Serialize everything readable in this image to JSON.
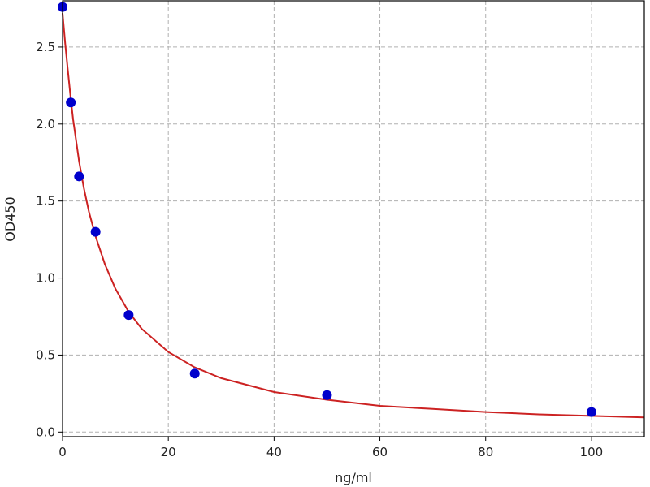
{
  "chart_data": {
    "type": "scatter",
    "title": "",
    "xlabel": "ng/ml",
    "ylabel": "OD450",
    "xlim": [
      0,
      110
    ],
    "ylim": [
      -0.03,
      2.8
    ],
    "grid": true,
    "xticks": [
      0,
      20,
      40,
      60,
      80,
      100
    ],
    "yticks": [
      0.0,
      0.5,
      1.0,
      1.5,
      2.0,
      2.5
    ],
    "xtick_labels": [
      "0",
      "20",
      "40",
      "60",
      "80",
      "100"
    ],
    "ytick_labels": [
      "0.0",
      "0.5",
      "1.0",
      "1.5",
      "2.0",
      "2.5"
    ],
    "series": [
      {
        "kind": "points",
        "color": "#0000cc",
        "x": [
          0,
          1.56,
          3.12,
          6.25,
          12.5,
          25,
          50,
          100
        ],
        "y": [
          2.76,
          2.14,
          1.66,
          1.3,
          0.76,
          0.38,
          0.24,
          0.13
        ]
      },
      {
        "kind": "fit-curve",
        "color": "#cc2222",
        "x": [
          0,
          0.5,
          1,
          1.56,
          2,
          3.12,
          4,
          5,
          6.25,
          8,
          10,
          12.5,
          15,
          20,
          25,
          30,
          40,
          50,
          60,
          70,
          80,
          90,
          100,
          110
        ],
        "y": [
          2.72,
          2.52,
          2.35,
          2.16,
          2.03,
          1.76,
          1.59,
          1.43,
          1.27,
          1.09,
          0.93,
          0.78,
          0.67,
          0.52,
          0.42,
          0.35,
          0.26,
          0.21,
          0.17,
          0.15,
          0.13,
          0.115,
          0.105,
          0.095
        ]
      }
    ]
  }
}
